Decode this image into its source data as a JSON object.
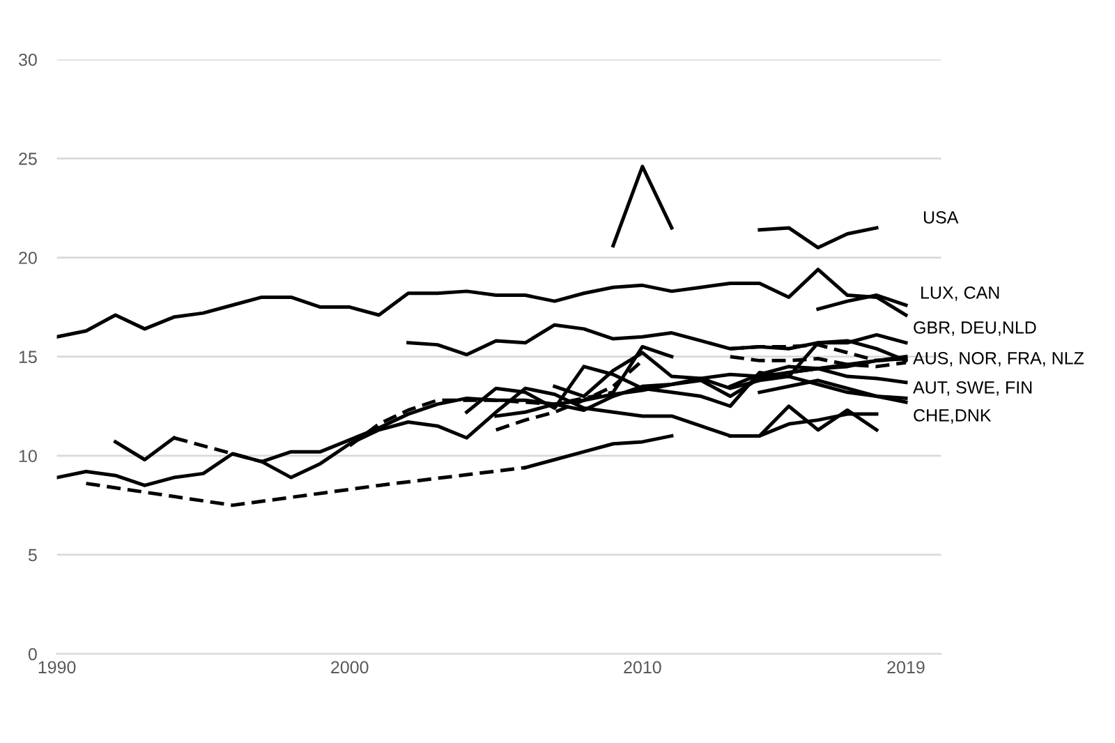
{
  "chart_data": {
    "type": "line",
    "xlim": [
      1990,
      2020.2
    ],
    "xticks": [
      1990,
      2000,
      2010,
      2019
    ],
    "ylim": [
      0,
      30
    ],
    "yticks": [
      0,
      5,
      10,
      15,
      20,
      25,
      30
    ],
    "grid": "y",
    "legend": false,
    "line_style": "solid",
    "series": [
      {
        "color": "#000000",
        "x": [
          1990,
          1991,
          1992,
          1993,
          1994,
          1995,
          1996,
          1997,
          1998,
          1999,
          2000,
          2001,
          2002,
          2003,
          2004,
          2005,
          2006,
          2007,
          2008,
          2009,
          2010,
          2011,
          2012,
          2013,
          2014,
          2015,
          2016,
          2017,
          2018,
          2019
        ],
        "values": [
          16.0,
          16.3,
          17.1,
          16.4,
          17.0,
          17.2,
          17.6,
          18.0,
          18.0,
          17.5,
          17.5,
          17.1,
          18.2,
          18.2,
          18.3,
          18.1,
          18.1,
          17.8,
          18.2,
          18.5,
          18.6,
          18.3,
          18.5,
          18.7,
          18.7,
          18.0,
          19.4,
          18.1,
          18.0,
          17.1
        ]
      },
      {
        "color": "#000000",
        "x": [
          2009,
          2010,
          2011,
          2012,
          2013,
          2014,
          2015,
          2016,
          2017,
          2018
        ],
        "values": [
          20.6,
          24.6,
          21.5,
          null,
          null,
          21.4,
          21.5,
          20.5,
          21.2,
          21.5
        ]
      },
      {
        "color": "#000000",
        "x": [
          2016,
          2017,
          2018,
          2019
        ],
        "values": [
          17.4,
          17.8,
          18.1,
          17.6
        ]
      },
      {
        "color": "#000000",
        "x": [
          2002,
          2003,
          2004,
          2005,
          2006,
          2007,
          2008,
          2009,
          2010,
          2011,
          2012,
          2013,
          2014,
          2015,
          2016,
          2017,
          2018,
          2019
        ],
        "values": [
          15.7,
          15.6,
          15.1,
          15.8,
          15.7,
          16.6,
          16.4,
          15.9,
          16.0,
          16.2,
          15.8,
          15.4,
          15.5,
          15.4,
          15.7,
          15.7,
          16.1,
          15.7
        ]
      },
      {
        "color": "#000000",
        "line_style": "dashed",
        "x": [
          2013,
          2014,
          2015,
          2016,
          2017,
          2018,
          2019
        ],
        "values": [
          15.4,
          15.5,
          15.5,
          15.6,
          15.2,
          14.8,
          14.9
        ]
      },
      {
        "color": "#000000",
        "line_style": "dashed",
        "x": [
          2013,
          2014,
          2015,
          2016,
          2017,
          2018,
          2019
        ],
        "values": [
          15.0,
          14.8,
          14.8,
          14.9,
          14.6,
          14.5,
          14.7
        ]
      },
      {
        "color": "#000000",
        "x": [
          1990,
          1991,
          1992,
          1993,
          1994,
          1995,
          1996,
          1997,
          1998,
          1999,
          2000,
          2001,
          2002,
          2003,
          2004,
          2005,
          2006,
          2007,
          2008,
          2009,
          2010,
          2011,
          2012,
          2013,
          2014,
          2015,
          2016,
          2017,
          2018,
          2019
        ],
        "values": [
          8.9,
          9.2,
          9.0,
          8.5,
          8.9,
          9.1,
          10.1,
          9.7,
          10.2,
          10.2,
          10.8,
          11.4,
          12.1,
          12.6,
          12.9,
          12.8,
          12.8,
          12.6,
          12.8,
          13.1,
          13.3,
          13.6,
          13.9,
          14.1,
          14.0,
          14.2,
          14.4,
          14.6,
          14.8,
          15.0
        ]
      },
      {
        "color": "#000000",
        "x": [
          1992,
          1993,
          1994
        ],
        "values": [
          10.7,
          9.8,
          10.9
        ]
      },
      {
        "color": "#000000",
        "line_style": "dashed",
        "x": [
          1994,
          1995,
          1996,
          1997
        ],
        "values": [
          10.9,
          10.5,
          10.1,
          9.7
        ]
      },
      {
        "color": "#000000",
        "x": [
          1997,
          1998,
          1999,
          2000,
          2001,
          2002,
          2003,
          2004,
          2005,
          2006,
          2007,
          2008,
          2009,
          2010,
          2011,
          2012,
          2013,
          2014,
          2015,
          2016,
          2017,
          2018
        ],
        "values": [
          9.7,
          8.9,
          9.6,
          10.6,
          11.3,
          11.7,
          11.5,
          10.9,
          12.2,
          13.4,
          13.1,
          12.4,
          12.2,
          12.0,
          12.0,
          11.5,
          11.0,
          11.0,
          11.6,
          11.8,
          12.1,
          12.1
        ]
      },
      {
        "color": "#000000",
        "line_style": "dashed",
        "x": [
          1991,
          1996,
          2001,
          2006
        ],
        "values": [
          8.6,
          7.5,
          8.5,
          9.4
        ]
      },
      {
        "color": "#000000",
        "x": [
          2006,
          2007,
          2008,
          2009,
          2010,
          2011
        ],
        "values": [
          9.4,
          9.8,
          10.2,
          10.6,
          10.7,
          11.0
        ]
      },
      {
        "color": "#000000",
        "line_style": "dashed",
        "x": [
          2000,
          2001,
          2002,
          2003,
          2004,
          2005,
          2006,
          2007,
          2008,
          2009
        ],
        "values": [
          10.5,
          11.6,
          12.3,
          12.8,
          12.8,
          12.8,
          12.7,
          12.6,
          12.9,
          13.2
        ]
      },
      {
        "color": "#000000",
        "x": [
          2009,
          2010,
          2011
        ],
        "values": [
          13.2,
          15.5,
          15.0
        ]
      },
      {
        "color": "#000000",
        "x": [
          2005,
          2006,
          2007,
          2008,
          2009,
          2010,
          2011,
          2012,
          2013,
          2014,
          2015,
          2016,
          2017,
          2018,
          2019
        ],
        "values": [
          12.0,
          12.2,
          12.6,
          12.3,
          13.0,
          13.5,
          13.6,
          13.8,
          13.0,
          13.9,
          14.2,
          14.4,
          14.5,
          14.8,
          14.9
        ]
      },
      {
        "color": "#000000",
        "line_style": "dashed",
        "x": [
          2005,
          2006,
          2007,
          2008,
          2009,
          2010
        ],
        "values": [
          11.3,
          11.8,
          12.2,
          12.8,
          13.5,
          14.8
        ]
      },
      {
        "color": "#000000",
        "x": [
          2007,
          2008,
          2009,
          2010,
          2011,
          2012,
          2013,
          2014,
          2015,
          2016,
          2017,
          2018,
          2019
        ],
        "values": [
          13.5,
          13.0,
          14.3,
          15.2,
          14.0,
          13.9,
          13.4,
          13.8,
          14.0,
          13.6,
          13.2,
          13.0,
          12.9
        ]
      },
      {
        "color": "#000000",
        "x": [
          2004,
          2005,
          2006,
          2007,
          2008,
          2009,
          2010,
          2011,
          2012,
          2013,
          2014,
          2015,
          2016,
          2017,
          2018,
          2019
        ],
        "values": [
          12.2,
          13.4,
          13.2,
          12.4,
          14.5,
          14.1,
          13.4,
          13.2,
          13.0,
          12.5,
          14.2,
          14.0,
          15.7,
          15.8,
          15.4,
          14.8
        ]
      },
      {
        "color": "#000000",
        "x": [
          2013,
          2014,
          2015,
          2016,
          2017,
          2018,
          2019
        ],
        "values": [
          13.5,
          14.1,
          14.5,
          14.4,
          14.0,
          13.9,
          13.7
        ]
      },
      {
        "color": "#000000",
        "x": [
          2014,
          2015,
          2016,
          2017,
          2018,
          2019
        ],
        "values": [
          13.2,
          13.5,
          13.8,
          13.4,
          13.0,
          12.7
        ]
      },
      {
        "color": "#000000",
        "x": [
          2013,
          2014,
          2015,
          2016,
          2017,
          2018
        ],
        "values": [
          11.0,
          11.0,
          12.5,
          11.3,
          12.3,
          11.3
        ]
      }
    ],
    "annotations": [
      "USA",
      "LUX, CAN",
      "GBR, DEU,NLD",
      "AUS, NOR, FRA, NLZ",
      "AUT, SWE, FIN",
      "CHE,DNK"
    ]
  }
}
